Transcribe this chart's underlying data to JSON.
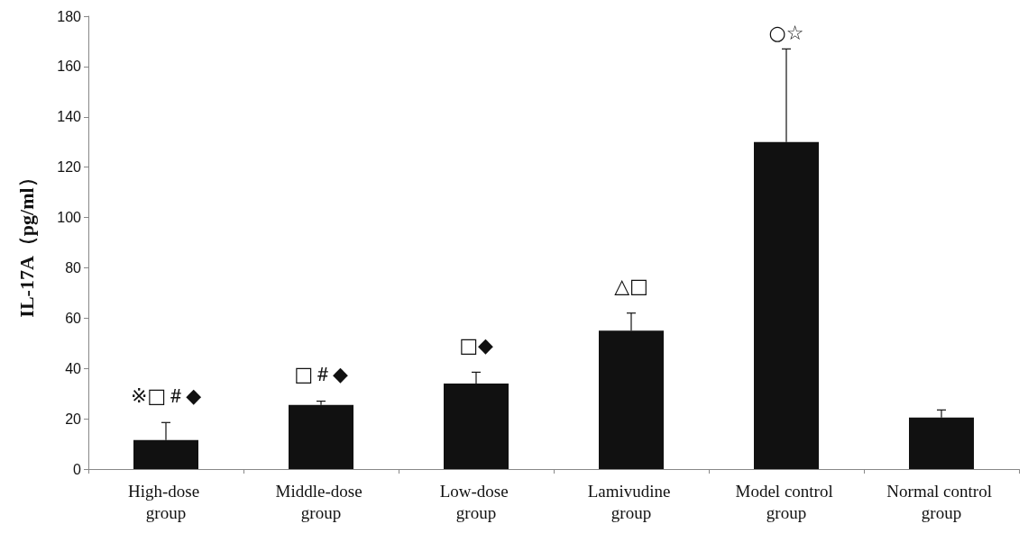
{
  "chart_data": {
    "type": "bar",
    "ylabel": "IL-17A（pg/ml）",
    "categories": [
      "High-dose group",
      "Middle-dose group",
      "Low-dose group",
      "Lamivudine group",
      "Model control group",
      "Normal control group"
    ],
    "values": [
      11.5,
      25.5,
      34,
      55,
      130,
      20.5
    ],
    "errors": [
      [
        11.5,
        18.5
      ],
      [
        25.5,
        27
      ],
      [
        34,
        38.5
      ],
      [
        55,
        62
      ],
      [
        130,
        167
      ],
      [
        20.5,
        23.5
      ]
    ],
    "color": "#111111",
    "ylim": [
      0,
      180
    ],
    "yticks": [
      0,
      20,
      40,
      60,
      80,
      100,
      120,
      140,
      160,
      180
    ],
    "grid": false,
    "annotations": [
      "※□＃◆",
      "□＃◆",
      "□◆",
      "△□",
      "○☆"
    ]
  }
}
